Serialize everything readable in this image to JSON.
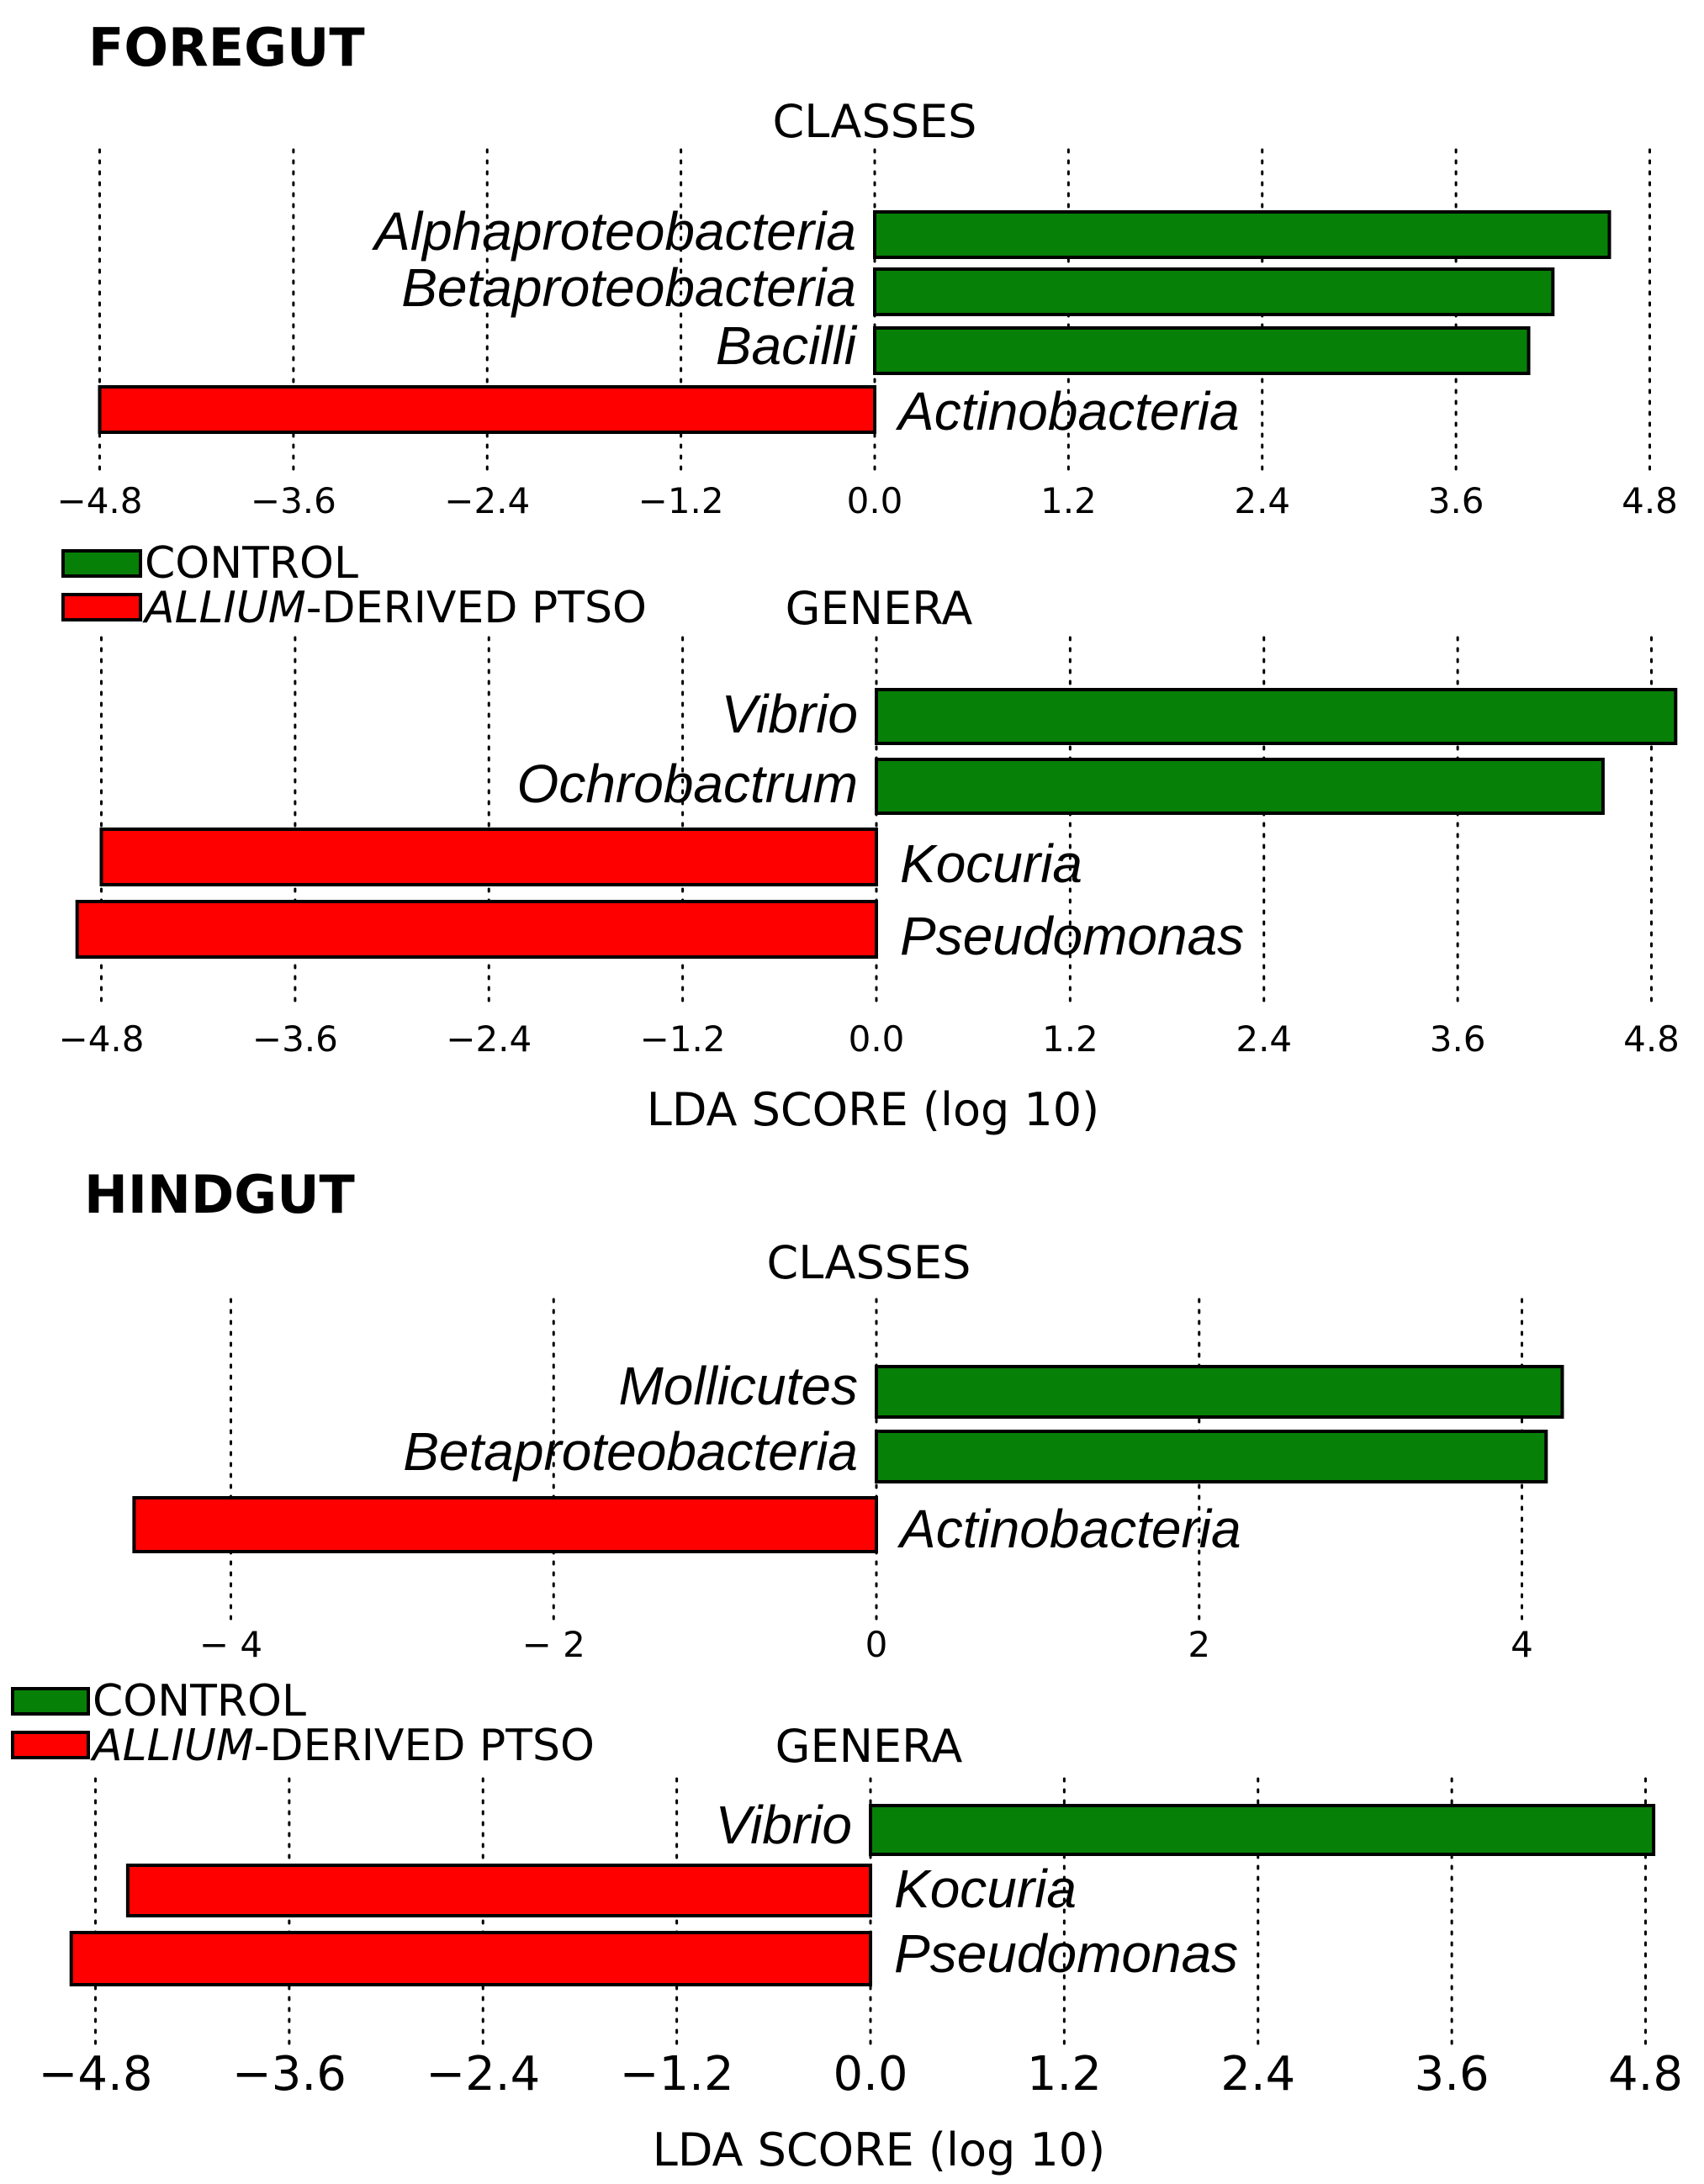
{
  "colors": {
    "control": "#078007",
    "treatment": "#ff0000"
  },
  "legend": {
    "control": "CONTROL",
    "treatment_italic": "ALLIUM",
    "treatment_rest": "-DERIVED PTSO"
  },
  "sections": [
    {
      "title": "FOREGUT"
    },
    {
      "title": "HINDGUT"
    }
  ],
  "chart_data": [
    {
      "id": "foregut-classes",
      "type": "bar",
      "orientation": "horizontal",
      "section": "FOREGUT",
      "title": "CLASSES",
      "xlim": [
        -4.8,
        4.8
      ],
      "xticks": [
        -4.8,
        -3.6,
        -2.4,
        -1.2,
        0.0,
        1.2,
        2.4,
        3.6,
        4.8
      ],
      "xtick_labels": [
        "−4.8",
        "−3.6",
        "−2.4",
        "−1.2",
        "0.0",
        "1.2",
        "2.4",
        "3.6",
        "4.8"
      ],
      "xlabel": "",
      "bars": [
        {
          "label": "Alphaproteobacteria",
          "value": 4.55,
          "group": "control"
        },
        {
          "label": "Betaproteobacteria",
          "value": 4.2,
          "group": "control"
        },
        {
          "label": "Bacilli",
          "value": 4.05,
          "group": "control"
        },
        {
          "label": "Actinobacteria",
          "value": -4.8,
          "group": "treatment"
        }
      ]
    },
    {
      "id": "foregut-genera",
      "type": "bar",
      "orientation": "horizontal",
      "section": "FOREGUT",
      "title": "GENERA",
      "xlim": [
        -4.8,
        4.8
      ],
      "xticks": [
        -4.8,
        -3.6,
        -2.4,
        -1.2,
        0.0,
        1.2,
        2.4,
        3.6,
        4.8
      ],
      "xtick_labels": [
        "−4.8",
        "−3.6",
        "−2.4",
        "−1.2",
        "0.0",
        "1.2",
        "2.4",
        "3.6",
        "4.8"
      ],
      "xlabel": "LDA SCORE (log 10)",
      "bars": [
        {
          "label": "Vibrio",
          "value": 4.95,
          "group": "control"
        },
        {
          "label": "Ochrobactrum",
          "value": 4.5,
          "group": "control"
        },
        {
          "label": "Kocuria",
          "value": -4.8,
          "group": "treatment"
        },
        {
          "label": "Pseudomonas",
          "value": -4.95,
          "group": "treatment"
        }
      ]
    },
    {
      "id": "hindgut-classes",
      "type": "bar",
      "orientation": "horizontal",
      "section": "HINDGUT",
      "title": "CLASSES",
      "xlim": [
        -4,
        4
      ],
      "xticks": [
        -4,
        -2,
        0,
        2,
        4
      ],
      "xtick_labels": [
        "− 4",
        "− 2",
        "0",
        "2",
        "4"
      ],
      "xlabel": "",
      "bars": [
        {
          "label": "Mollicutes",
          "value": 4.25,
          "group": "control"
        },
        {
          "label": "Betaproteobacteria",
          "value": 4.15,
          "group": "control"
        },
        {
          "label": "Actinobacteria",
          "value": -4.6,
          "group": "treatment"
        }
      ]
    },
    {
      "id": "hindgut-genera",
      "type": "bar",
      "orientation": "horizontal",
      "section": "HINDGUT",
      "title": "GENERA",
      "xlim": [
        -4.8,
        4.8
      ],
      "xticks": [
        -4.8,
        -3.6,
        -2.4,
        -1.2,
        0.0,
        1.2,
        2.4,
        3.6,
        4.8
      ],
      "xtick_labels": [
        "−4.8",
        "−3.6",
        "−2.4",
        "−1.2",
        "0.0",
        "1.2",
        "2.4",
        "3.6",
        "4.8"
      ],
      "xlabel": "LDA SCORE (log 10)",
      "bars": [
        {
          "label": "Vibrio",
          "value": 4.85,
          "group": "control"
        },
        {
          "label": "Kocuria",
          "value": -4.6,
          "group": "treatment"
        },
        {
          "label": "Pseudomonas",
          "value": -4.95,
          "group": "treatment"
        }
      ]
    }
  ]
}
